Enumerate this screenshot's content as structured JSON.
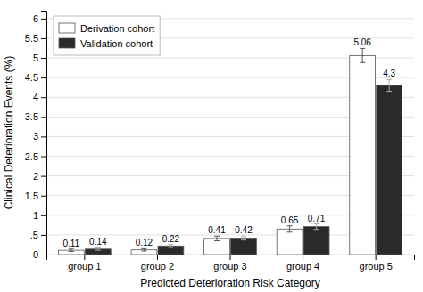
{
  "chart_data": {
    "type": "bar",
    "categories": [
      "group 1",
      "group 2",
      "group 3",
      "group 4",
      "group 5"
    ],
    "series": [
      {
        "name": "Derivation cohort",
        "color": "#ffffff",
        "values": [
          0.11,
          0.12,
          0.41,
          0.65,
          5.06
        ],
        "errors": [
          0.03,
          0.03,
          0.06,
          0.08,
          0.18
        ]
      },
      {
        "name": "Validation cohort",
        "color": "#2a2a2a",
        "values": [
          0.14,
          0.22,
          0.42,
          0.71,
          4.3
        ],
        "errors": [
          0.03,
          0.04,
          0.05,
          0.07,
          0.15
        ]
      }
    ],
    "xlabel": "Predicted Deterioration Risk Category",
    "ylabel": "Clinical Deterioration Events (%)",
    "ylim": [
      0,
      6.2
    ],
    "yticks": [
      0,
      {
        "value": 0.5,
        "label": ".5"
      },
      1,
      1.5,
      2,
      2.5,
      3,
      3.5,
      4,
      4.5,
      5,
      5.5,
      6
    ],
    "grid": true,
    "legend": "upper left",
    "data_labels": true
  }
}
